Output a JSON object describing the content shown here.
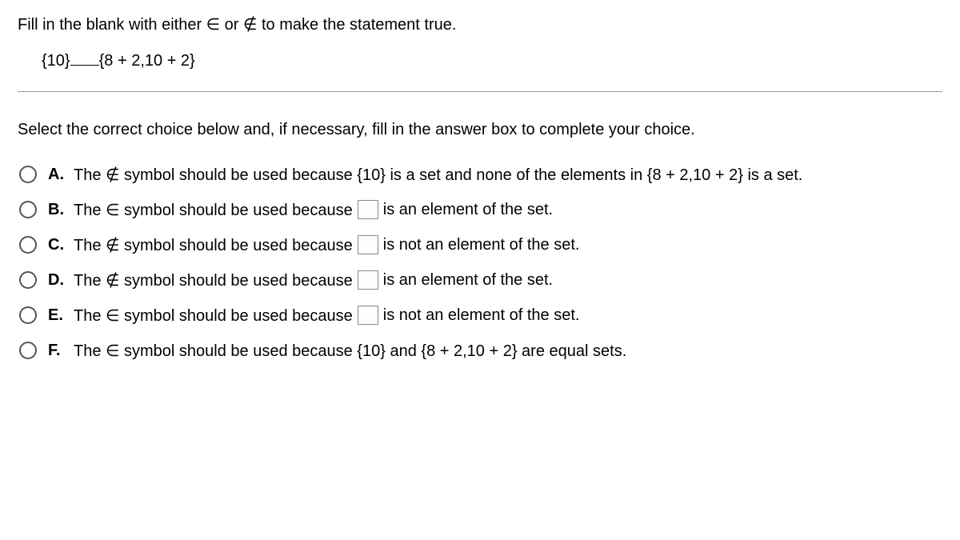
{
  "question": {
    "prompt": "Fill in the blank with either ∈ or ∉ to make the statement true.",
    "left_expr": "{10}",
    "right_expr": "{8 + 2,10 + 2}"
  },
  "select_prompt": "Select the correct choice below and, if necessary, fill in the answer box to complete your choice.",
  "choices": {
    "A": {
      "letter": "A.",
      "text": "The ∉ symbol should be used because {10} is a set and none of the elements in {8 + 2,10 + 2} is a set.",
      "has_box": false
    },
    "B": {
      "letter": "B.",
      "pre": "The ∈ symbol should be used because",
      "post": "is an element of the set.",
      "has_box": true
    },
    "C": {
      "letter": "C.",
      "pre": "The ∉ symbol should be used because",
      "post": "is not an element of the set.",
      "has_box": true
    },
    "D": {
      "letter": "D.",
      "pre": "The ∉ symbol should be used because",
      "post": "is an element of the set.",
      "has_box": true
    },
    "E": {
      "letter": "E.",
      "pre": "The ∈ symbol should be used because",
      "post": "is not an element of the set.",
      "has_box": true
    },
    "F": {
      "letter": "F.",
      "text": "The ∈ symbol should be used because {10} and {8 + 2,10 + 2} are equal sets.",
      "has_box": false
    }
  }
}
